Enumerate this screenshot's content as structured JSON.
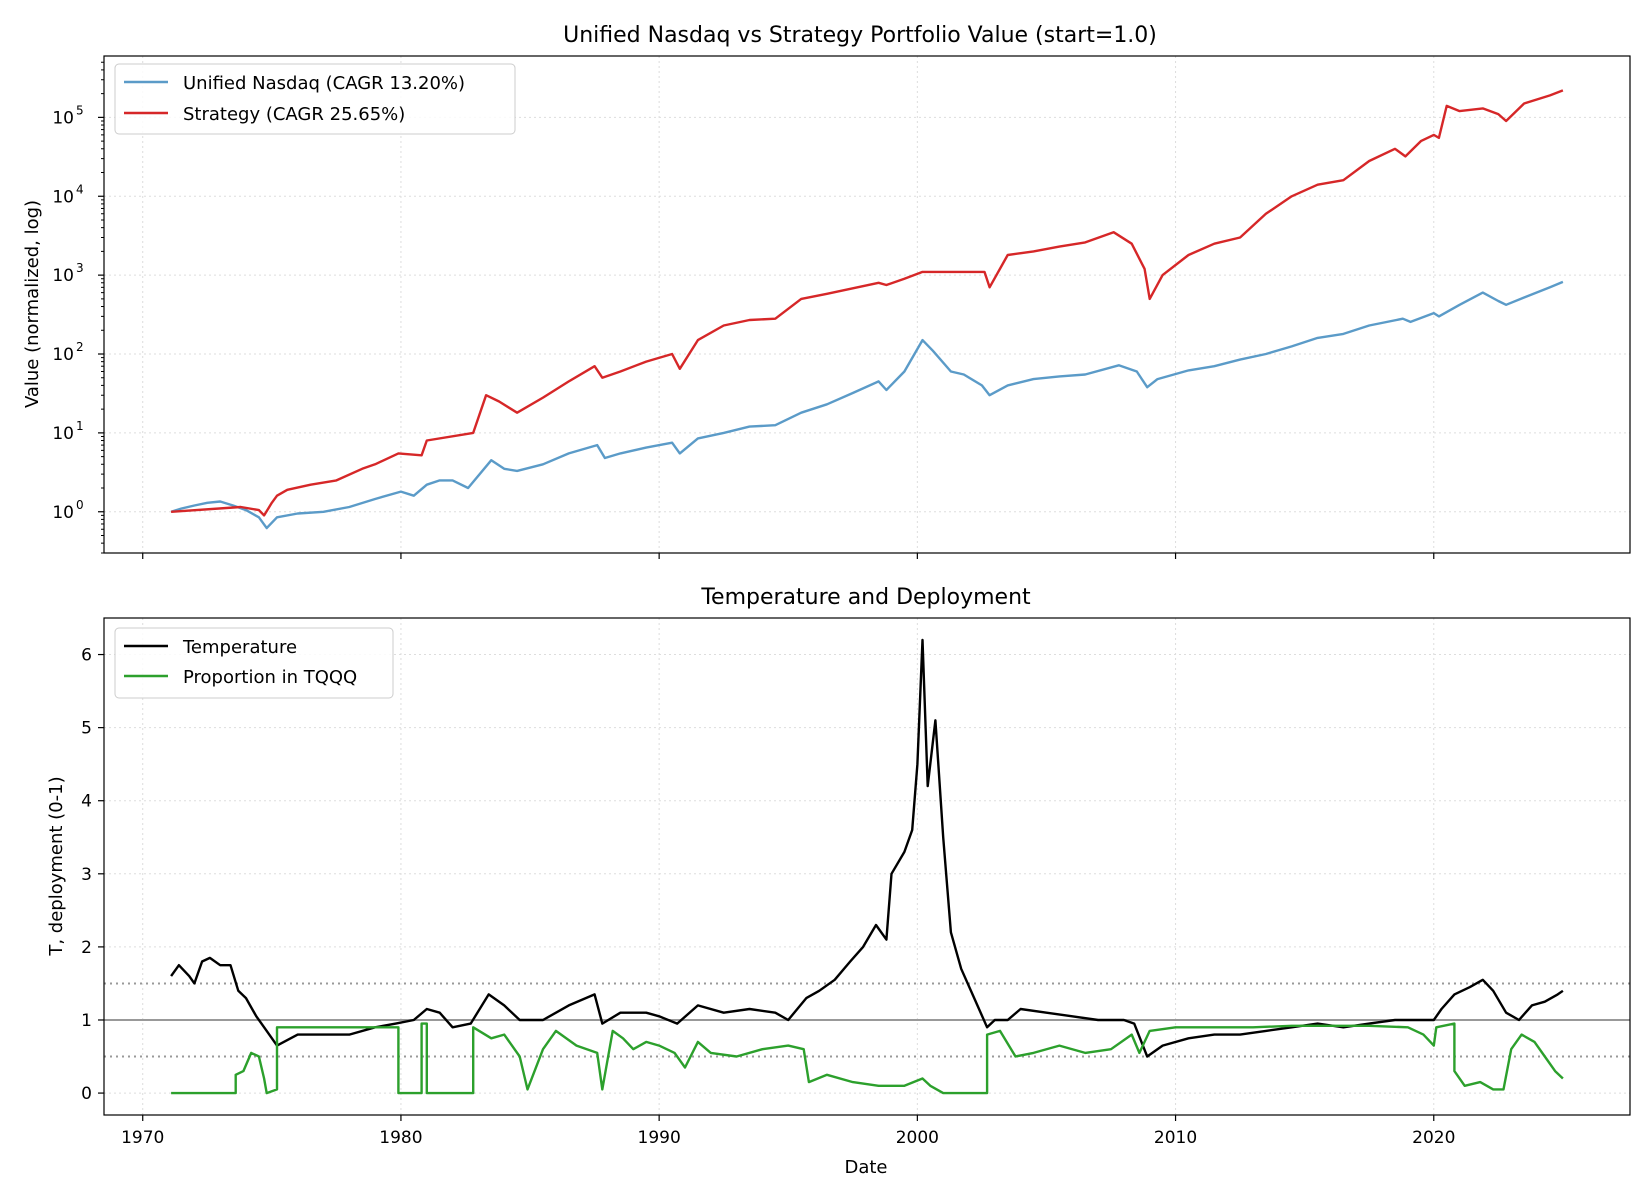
{
  "chart_data": [
    {
      "type": "line",
      "title": "Unified Nasdaq vs Strategy Portfolio Value (start=1.0)",
      "xlabel": "",
      "ylabel": "Value (normalized, log)",
      "yscale": "log",
      "xlim": [
        1968.5,
        2027.6
      ],
      "ylim": [
        0.3,
        600000
      ],
      "x_ticks": [
        1970,
        1980,
        1990,
        2000,
        2010,
        2020
      ],
      "y_ticks": [
        {
          "value": 1,
          "base": "10",
          "exp": "0"
        },
        {
          "value": 10,
          "base": "10",
          "exp": "1"
        },
        {
          "value": 100,
          "base": "10",
          "exp": "2"
        },
        {
          "value": 1000,
          "base": "10",
          "exp": "3"
        },
        {
          "value": 10000,
          "base": "10",
          "exp": "4"
        },
        {
          "value": 100000,
          "base": "10",
          "exp": "5"
        }
      ],
      "grid": true,
      "legend_position": "upper-left",
      "series": [
        {
          "name": "Unified Nasdaq (CAGR 13.20%)",
          "color": "#5b9bc8",
          "x": [
            1971.1,
            1971.5,
            1972.0,
            1972.5,
            1973.0,
            1973.5,
            1974.0,
            1974.5,
            1974.8,
            1975.2,
            1976.0,
            1977.0,
            1978.0,
            1979.0,
            1980.0,
            1980.5,
            1981.0,
            1981.5,
            1982.0,
            1982.6,
            1983.5,
            1984.0,
            1984.5,
            1985.5,
            1986.5,
            1987.6,
            1987.9,
            1988.5,
            1989.5,
            1990.5,
            1990.8,
            1991.5,
            1992.5,
            1993.5,
            1994.5,
            1995.5,
            1996.5,
            1997.5,
            1998.5,
            1998.8,
            1999.5,
            2000.2,
            2000.6,
            2001.3,
            2001.8,
            2002.5,
            2002.8,
            2003.5,
            2004.5,
            2005.5,
            2006.5,
            2007.8,
            2008.5,
            2008.9,
            2009.3,
            2010.5,
            2011.5,
            2012.5,
            2013.5,
            2014.5,
            2015.5,
            2016.5,
            2017.5,
            2018.8,
            2019.1,
            2020.0,
            2020.2,
            2021.0,
            2021.9,
            2022.5,
            2022.8,
            2023.5,
            2024.5,
            2025.0
          ],
          "y": [
            1.0,
            1.1,
            1.2,
            1.3,
            1.35,
            1.2,
            1.05,
            0.85,
            0.62,
            0.85,
            0.95,
            1.0,
            1.15,
            1.45,
            1.8,
            1.6,
            2.2,
            2.5,
            2.5,
            2.0,
            4.5,
            3.5,
            3.3,
            4.0,
            5.5,
            7.0,
            4.8,
            5.5,
            6.5,
            7.5,
            5.5,
            8.5,
            10.0,
            12.0,
            12.5,
            18.0,
            23.0,
            32.0,
            45.0,
            35.0,
            60.0,
            150.0,
            110.0,
            60.0,
            55.0,
            40.0,
            30.0,
            40.0,
            48.0,
            52.0,
            55.0,
            72.0,
            60.0,
            38.0,
            48.0,
            62.0,
            70.0,
            85.0,
            100.0,
            125.0,
            160.0,
            180.0,
            230.0,
            280.0,
            255.0,
            330.0,
            300.0,
            420.0,
            600.0,
            470.0,
            420.0,
            520.0,
            700.0,
            820.0
          ]
        },
        {
          "name": "Strategy (CAGR 25.65%)",
          "color": "#d62728",
          "x": [
            1971.1,
            1973.8,
            1974.5,
            1974.7,
            1975.0,
            1975.2,
            1975.6,
            1976.5,
            1977.5,
            1978.5,
            1979.0,
            1979.9,
            1980.8,
            1981.0,
            1982.8,
            1983.3,
            1983.8,
            1984.5,
            1985.5,
            1986.5,
            1987.5,
            1987.8,
            1988.5,
            1989.5,
            1990.5,
            1990.8,
            1991.5,
            1992.5,
            1993.5,
            1994.5,
            1995.5,
            1996.5,
            1997.5,
            1998.5,
            1998.8,
            1999.5,
            2000.2,
            2002.6,
            2002.8,
            2003.5,
            2004.5,
            2005.5,
            2006.5,
            2007.6,
            2008.3,
            2008.8,
            2009.0,
            2009.5,
            2010.5,
            2011.5,
            2012.5,
            2013.5,
            2014.5,
            2015.5,
            2016.5,
            2017.5,
            2018.5,
            2018.9,
            2019.5,
            2020.0,
            2020.2,
            2020.5,
            2021.0,
            2021.9,
            2022.5,
            2022.8,
            2023.5,
            2024.5,
            2025.0
          ],
          "y": [
            1.0,
            1.15,
            1.05,
            0.9,
            1.3,
            1.6,
            1.9,
            2.2,
            2.5,
            3.5,
            4.0,
            5.5,
            5.2,
            8.0,
            10.0,
            30.0,
            25.0,
            18.0,
            28.0,
            45.0,
            70.0,
            50.0,
            60.0,
            80.0,
            100.0,
            65.0,
            150.0,
            230.0,
            270.0,
            280.0,
            500.0,
            580.0,
            680.0,
            800.0,
            750.0,
            900.0,
            1100.0,
            1100.0,
            700.0,
            1800.0,
            2000.0,
            2300.0,
            2600.0,
            3500.0,
            2500.0,
            1200.0,
            500.0,
            1000.0,
            1800.0,
            2500.0,
            3000.0,
            6000.0,
            10000.0,
            14000.0,
            16000.0,
            28000.0,
            40000.0,
            32000.0,
            50000.0,
            60000.0,
            55000.0,
            140000.0,
            120000.0,
            130000.0,
            110000.0,
            90000.0,
            150000.0,
            190000.0,
            220000.0
          ]
        }
      ]
    },
    {
      "type": "line",
      "title": "Temperature and Deployment",
      "xlabel": "Date",
      "ylabel": "T, deployment (0-1)",
      "xlim": [
        1968.5,
        2027.6
      ],
      "ylim": [
        -0.3,
        6.5
      ],
      "x_ticks": [
        1970,
        1980,
        1990,
        2000,
        2010,
        2020
      ],
      "y_ticks": [
        0,
        1,
        2,
        3,
        4,
        5,
        6
      ],
      "grid": true,
      "legend_position": "upper-left",
      "reference_lines": [
        {
          "y": 1.0,
          "style": "solid",
          "color": "#999999"
        },
        {
          "y": 1.5,
          "style": "dotted",
          "color": "#999999"
        },
        {
          "y": 0.5,
          "style": "dotted",
          "color": "#999999"
        }
      ],
      "series": [
        {
          "name": "Temperature",
          "color": "#000000",
          "x": [
            1971.1,
            1971.4,
            1971.8,
            1972.0,
            1972.3,
            1972.6,
            1973.0,
            1973.4,
            1973.7,
            1974.0,
            1974.4,
            1974.8,
            1975.2,
            1976.0,
            1977.0,
            1978.0,
            1979.0,
            1979.8,
            1980.5,
            1981.0,
            1981.5,
            1982.0,
            1982.7,
            1983.4,
            1984.0,
            1984.6,
            1985.5,
            1986.5,
            1987.5,
            1987.8,
            1988.5,
            1989.5,
            1990.0,
            1990.7,
            1991.5,
            1992.5,
            1993.5,
            1994.5,
            1995.0,
            1995.7,
            1996.2,
            1996.8,
            1997.4,
            1997.9,
            1998.4,
            1998.8,
            1999.0,
            1999.5,
            1999.8,
            2000.0,
            2000.2,
            2000.4,
            2000.7,
            2001.0,
            2001.3,
            2001.7,
            2002.2,
            2002.7,
            2003.0,
            2003.5,
            2004.0,
            2005.0,
            2006.0,
            2007.0,
            2008.0,
            2008.4,
            2008.9,
            2009.5,
            2010.5,
            2011.5,
            2012.5,
            2013.5,
            2014.5,
            2015.5,
            2016.5,
            2017.5,
            2018.5,
            2019.5,
            2020.0,
            2020.3,
            2020.8,
            2021.4,
            2021.9,
            2022.3,
            2022.8,
            2023.3,
            2023.8,
            2024.3,
            2024.8,
            2025.0
          ],
          "y": [
            1.6,
            1.75,
            1.6,
            1.5,
            1.8,
            1.85,
            1.75,
            1.75,
            1.4,
            1.3,
            1.05,
            0.85,
            0.65,
            0.8,
            0.8,
            0.8,
            0.9,
            0.95,
            1.0,
            1.15,
            1.1,
            0.9,
            0.95,
            1.35,
            1.2,
            1.0,
            1.0,
            1.2,
            1.35,
            0.95,
            1.1,
            1.1,
            1.05,
            0.95,
            1.2,
            1.1,
            1.15,
            1.1,
            1.0,
            1.3,
            1.4,
            1.55,
            1.8,
            2.0,
            2.3,
            2.1,
            3.0,
            3.3,
            3.6,
            4.5,
            6.2,
            4.2,
            5.1,
            3.5,
            2.2,
            1.7,
            1.3,
            0.9,
            1.0,
            1.0,
            1.15,
            1.1,
            1.05,
            1.0,
            1.0,
            0.95,
            0.5,
            0.65,
            0.75,
            0.8,
            0.8,
            0.85,
            0.9,
            0.95,
            0.9,
            0.95,
            1.0,
            1.0,
            1.0,
            1.15,
            1.35,
            1.45,
            1.55,
            1.4,
            1.1,
            1.0,
            1.2,
            1.25,
            1.35,
            1.4
          ]
        },
        {
          "name": "Proportion in TQQQ",
          "color": "#2ca02c",
          "x": [
            1971.1,
            1973.6,
            1973.6,
            1973.9,
            1974.2,
            1974.5,
            1974.7,
            1974.8,
            1974.8,
            1975.2,
            1975.2,
            1979.9,
            1979.9,
            1980.8,
            1980.8,
            1981.0,
            1981.0,
            1982.8,
            1982.8,
            1983.5,
            1984.0,
            1984.6,
            1984.9,
            1985.5,
            1986.0,
            1986.8,
            1987.6,
            1987.8,
            1988.2,
            1988.6,
            1989.0,
            1989.5,
            1990.0,
            1990.6,
            1991.0,
            1991.5,
            1992.0,
            1993.0,
            1994.0,
            1995.0,
            1995.6,
            1995.8,
            1996.5,
            1997.5,
            1998.5,
            1999.5,
            2000.2,
            2000.5,
            2001.0,
            2002.7,
            2002.7,
            2003.2,
            2003.8,
            2004.5,
            2005.5,
            2006.5,
            2007.5,
            2008.3,
            2008.6,
            2009.0,
            2010.0,
            2011.5,
            2013.0,
            2014.5,
            2016.0,
            2017.5,
            2019.0,
            2019.6,
            2020.0,
            2020.1,
            2020.8,
            2020.8,
            2021.2,
            2021.8,
            2022.3,
            2022.7,
            2023.0,
            2023.4,
            2023.9,
            2024.3,
            2024.7,
            2025.0
          ],
          "y": [
            0.0,
            0.0,
            0.25,
            0.3,
            0.55,
            0.5,
            0.2,
            0.0,
            0.0,
            0.05,
            0.9,
            0.9,
            0.0,
            0.0,
            0.95,
            0.95,
            0.0,
            0.0,
            0.9,
            0.75,
            0.8,
            0.5,
            0.05,
            0.6,
            0.85,
            0.65,
            0.55,
            0.05,
            0.85,
            0.75,
            0.6,
            0.7,
            0.65,
            0.55,
            0.35,
            0.7,
            0.55,
            0.5,
            0.6,
            0.65,
            0.6,
            0.15,
            0.25,
            0.15,
            0.1,
            0.1,
            0.2,
            0.1,
            0.0,
            0.0,
            0.8,
            0.85,
            0.5,
            0.55,
            0.65,
            0.55,
            0.6,
            0.8,
            0.55,
            0.85,
            0.9,
            0.9,
            0.9,
            0.92,
            0.92,
            0.92,
            0.9,
            0.8,
            0.65,
            0.9,
            0.95,
            0.3,
            0.1,
            0.15,
            0.05,
            0.05,
            0.6,
            0.8,
            0.7,
            0.5,
            0.3,
            0.2
          ]
        }
      ]
    }
  ]
}
